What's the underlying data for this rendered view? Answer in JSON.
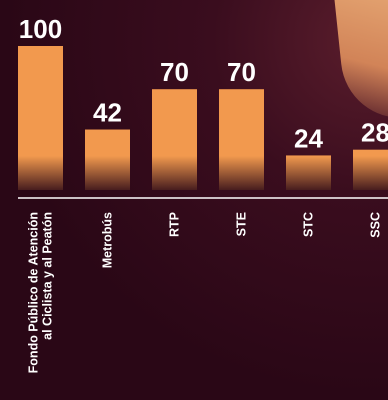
{
  "chart_data": {
    "type": "bar",
    "title": "",
    "xlabel": "",
    "ylabel": "",
    "categories": [
      [
        "Fondo Público de Atención",
        "al Ciclista y al Peatón"
      ],
      [
        "Metrobús"
      ],
      [
        "RTP"
      ],
      [
        "STE"
      ],
      [
        "STC"
      ],
      [
        "SSC"
      ]
    ],
    "values": [
      100,
      42,
      70,
      70,
      24,
      28
    ],
    "value_labels": [
      "100",
      "42",
      "70",
      "70",
      "24",
      "28"
    ],
    "ylim": [
      0,
      100
    ],
    "grid": false,
    "colors": {
      "bar": "#f2994e",
      "background": "#2a0716",
      "baseline": "#ffffff",
      "text": "#ffffff"
    }
  }
}
